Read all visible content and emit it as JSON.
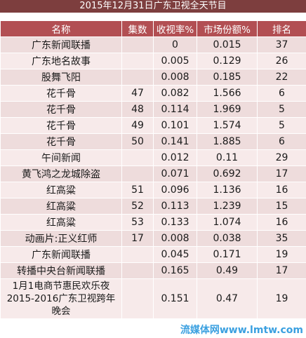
{
  "title": "2015年12月31日广东卫视全天节目",
  "headers": [
    "名称",
    "集数",
    "收视率%",
    "市场份额%",
    "排名"
  ],
  "rows": [
    {
      "name": "广东新闻联播",
      "episode": "",
      "rating": "0",
      "share": "0.015",
      "rank": "37"
    },
    {
      "name": "广东地名故事",
      "episode": "",
      "rating": "0.005",
      "share": "0.129",
      "rank": "26"
    },
    {
      "name": "股舞飞阳",
      "episode": "",
      "rating": "0.008",
      "share": "0.185",
      "rank": "22"
    },
    {
      "name": "花千骨",
      "episode": "47",
      "rating": "0.082",
      "share": "1.566",
      "rank": "6"
    },
    {
      "name": "花千骨",
      "episode": "48",
      "rating": "0.114",
      "share": "1.969",
      "rank": "5"
    },
    {
      "name": "花千骨",
      "episode": "49",
      "rating": "0.101",
      "share": "1.574",
      "rank": "5"
    },
    {
      "name": "花千骨",
      "episode": "50",
      "rating": "0.141",
      "share": "1.885",
      "rank": "6"
    },
    {
      "name": "午间新闻",
      "episode": "",
      "rating": "0.012",
      "share": "0.11",
      "rank": "29"
    },
    {
      "name": "黄飞鸿之龙城除盗",
      "episode": "",
      "rating": "0.071",
      "share": "0.692",
      "rank": "17"
    },
    {
      "name": "红高粱",
      "episode": "51",
      "rating": "0.096",
      "share": "1.136",
      "rank": "16"
    },
    {
      "name": "红高粱",
      "episode": "52",
      "rating": "0.113",
      "share": "1.239",
      "rank": "15"
    },
    {
      "name": "红高粱",
      "episode": "53",
      "rating": "0.133",
      "share": "1.074",
      "rank": "16"
    },
    {
      "name": "动画片:正义红师",
      "episode": "17",
      "rating": "0.008",
      "share": "0.038",
      "rank": "35"
    },
    {
      "name": "广东新闻联播",
      "episode": "",
      "rating": "0.045",
      "share": "0.171",
      "rank": "19"
    },
    {
      "name": "转播中央台新闻联播",
      "episode": "",
      "rating": "0.165",
      "share": "0.49",
      "rank": "17"
    },
    {
      "name": "1月1电商节惠民欢乐夜2015-2016广东卫视跨年晚会",
      "episode": "",
      "rating": "0.151",
      "share": "0.47",
      "rank": "19"
    }
  ],
  "watermark": "流媒体网www.lmtw.com",
  "colors": {
    "title_bg": "#7d3e3e",
    "header_bg": "#b24f53",
    "row_odd": "#eedcdc",
    "row_even": "#f7eaea",
    "watermark": "#3aa0e0"
  }
}
